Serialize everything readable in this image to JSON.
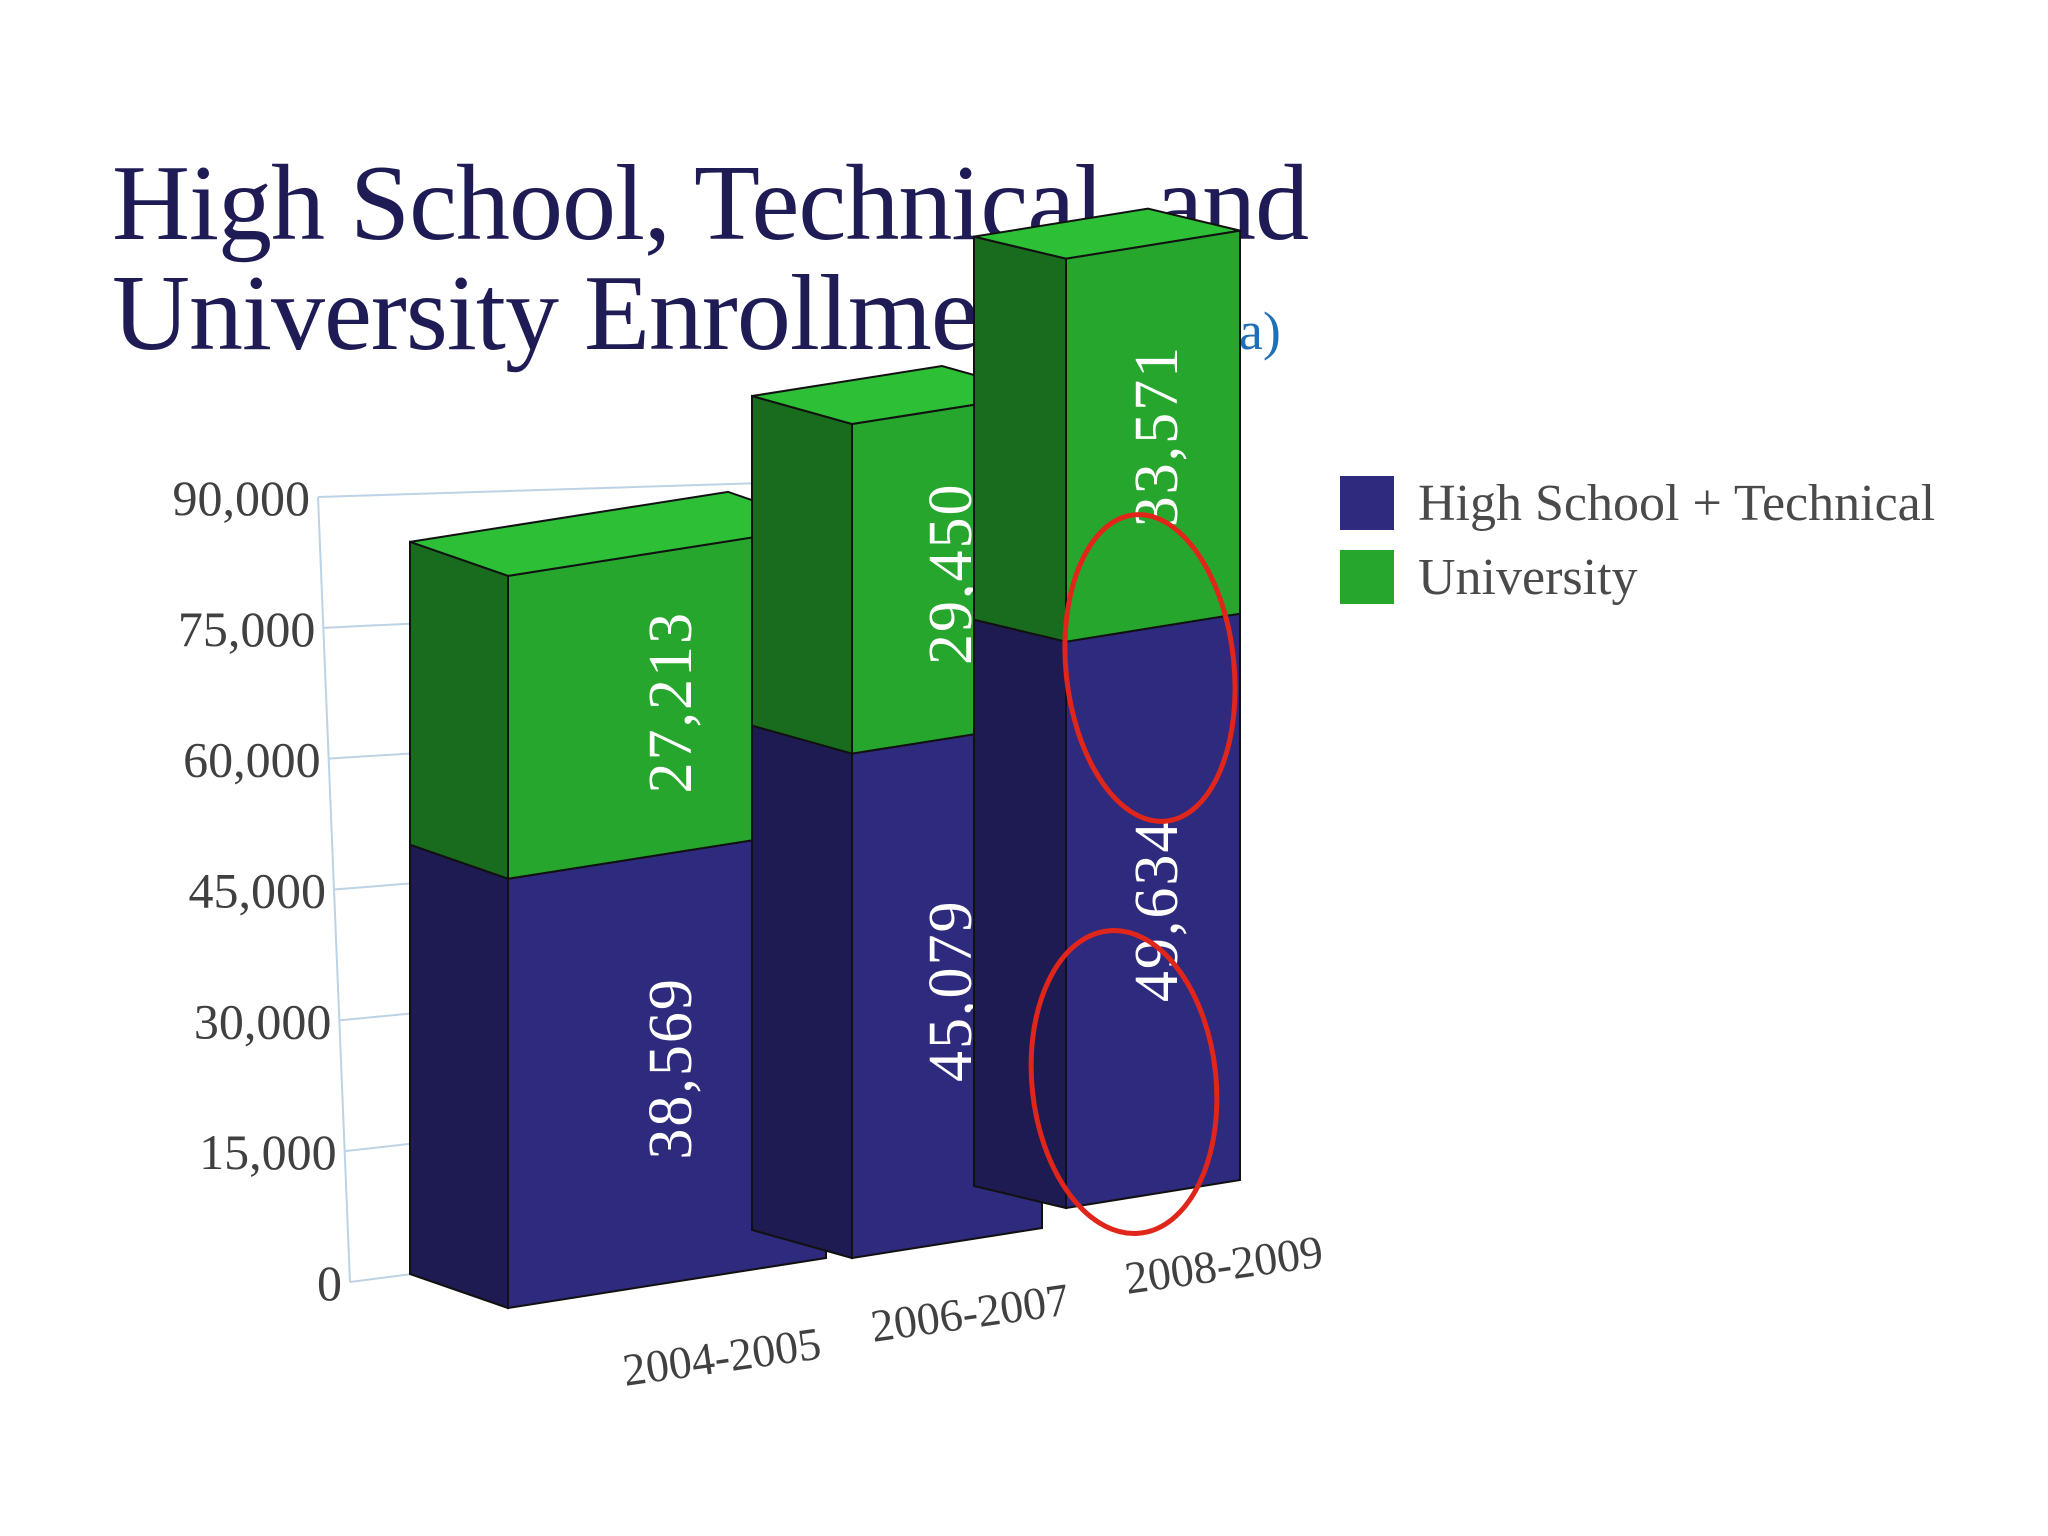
{
  "chart_data": {
    "type": "bar",
    "stacked": true,
    "title": "High School, Technical, and University Enrollment",
    "title_line1": "High School, Technical, and",
    "title_line2": "University Enrollment",
    "subtitle": "(Tijuana)",
    "xlabel": "",
    "ylabel": "",
    "ylim": [
      0,
      90000
    ],
    "yticks": [
      "0",
      "15,000",
      "30,000",
      "45,000",
      "60,000",
      "75,000",
      "90,000"
    ],
    "categories": [
      "2004-2005",
      "2006-2007",
      "2008-2009"
    ],
    "series": [
      {
        "name": "High School + Technical",
        "values": [
          38569,
          45079,
          49634
        ],
        "labels": [
          "38,569",
          "45,079",
          "49,634"
        ],
        "color": "#2e2a7e"
      },
      {
        "name": "University",
        "values": [
          27213,
          29450,
          33571
        ],
        "labels": [
          "27,213",
          "29,450",
          "33,571"
        ],
        "color": "#27a62e"
      }
    ],
    "legend_position": "top-right",
    "grid": true,
    "annotations": [
      {
        "type": "red-circle",
        "category": "2008-2009",
        "series": "University"
      },
      {
        "type": "red-circle",
        "category": "2008-2009",
        "series": "High School + Technical"
      }
    ]
  }
}
